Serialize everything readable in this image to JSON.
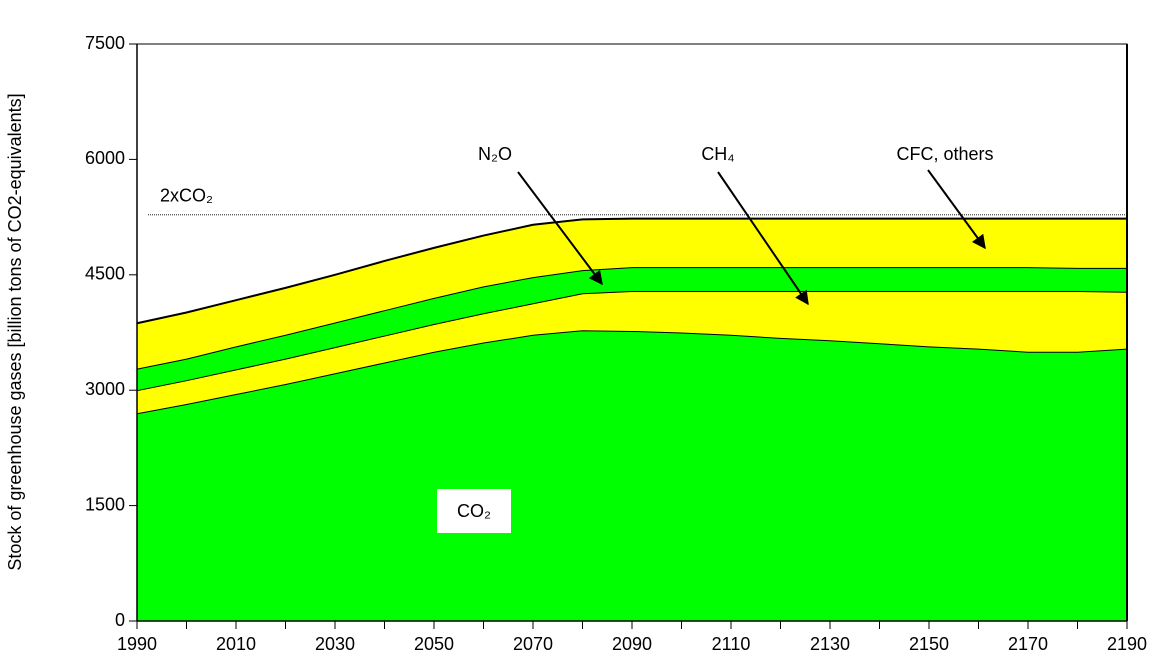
{
  "chart_data": {
    "type": "stacked-area",
    "y_label": "Stock of greenhouse gases [billion tons of CO2-equivalents]",
    "x": [
      1990,
      2000,
      2010,
      2020,
      2030,
      2040,
      2050,
      2060,
      2070,
      2080,
      2090,
      2100,
      2110,
      2120,
      2130,
      2140,
      2150,
      2160,
      2170,
      2180,
      2190
    ],
    "series": [
      {
        "name": "CO₂",
        "color": "#00ff00",
        "values": [
          2700,
          2820,
          2950,
          3080,
          3220,
          3360,
          3500,
          3620,
          3720,
          3780,
          3770,
          3750,
          3720,
          3680,
          3650,
          3610,
          3570,
          3540,
          3500,
          3500,
          3540
        ]
      },
      {
        "name": "CH₄",
        "color": "#ffff00",
        "values": [
          300,
          310,
          320,
          330,
          340,
          350,
          360,
          380,
          410,
          480,
          520,
          540,
          570,
          610,
          640,
          680,
          720,
          750,
          790,
          790,
          740
        ]
      },
      {
        "name": "N₂O",
        "color": "#00ff00",
        "values": [
          280,
          280,
          300,
          310,
          320,
          330,
          340,
          350,
          340,
          300,
          310,
          310,
          310,
          310,
          310,
          310,
          310,
          310,
          310,
          300,
          310
        ]
      },
      {
        "name": "CFC, others",
        "color": "#ffff00",
        "values": [
          590,
          600,
          600,
          610,
          620,
          640,
          650,
          660,
          680,
          660,
          630,
          630,
          630,
          630,
          630,
          630,
          630,
          630,
          630,
          640,
          640
        ]
      }
    ],
    "reference_line": {
      "label": "2xCO₂",
      "value": 5280
    },
    "xlim": [
      1990,
      2190
    ],
    "xticks": [
      1990,
      2010,
      2030,
      2050,
      2070,
      2090,
      2110,
      2130,
      2150,
      2170,
      2190
    ],
    "xminor_ticks": [
      2000,
      2020,
      2040,
      2060,
      2080,
      2100,
      2120,
      2140,
      2160,
      2180
    ],
    "ylim": [
      0,
      7500
    ],
    "yticks": [
      0,
      1500,
      3000,
      4500,
      6000,
      7500
    ],
    "grid": false
  }
}
